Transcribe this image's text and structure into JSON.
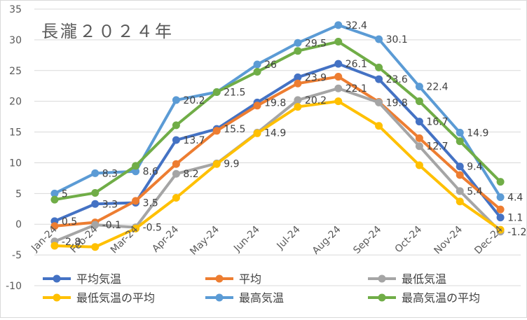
{
  "chart_data": {
    "type": "line",
    "title": "長瀧２０２４年",
    "categories": [
      "Jan-24",
      "Feb-24",
      "Mar-24",
      "Apr-24",
      "May-24",
      "Jun-24",
      "Jul-24",
      "Aug-24",
      "Sep-24",
      "Oct-24",
      "Nov-24",
      "Dec-24"
    ],
    "ylim": [
      -10,
      35
    ],
    "yticks": [
      -10,
      -5,
      0,
      5,
      10,
      15,
      20,
      25,
      30,
      35
    ],
    "grid": true,
    "legend_position": "bottom",
    "series": [
      {
        "name": "平均気温",
        "color": "#4472c4",
        "values": [
          0.5,
          3.3,
          3.5,
          13.7,
          15.5,
          19.8,
          23.9,
          26.1,
          23.6,
          16.7,
          9.4,
          1.1
        ],
        "labels": [
          "0.5",
          "3.3",
          "3.5",
          "13.7",
          "15.5",
          "19.8",
          "23.9",
          "26.1",
          "23.6",
          "16.7",
          "9.4",
          "1.1"
        ]
      },
      {
        "name": "平均",
        "color": "#ed7d31",
        "values": [
          -0.3,
          0.3,
          3.8,
          9.8,
          15.2,
          19.3,
          22.9,
          24.0,
          19.9,
          14.0,
          8.0,
          2.4
        ],
        "labels": []
      },
      {
        "name": "最低気温",
        "color": "#a5a5a5",
        "values": [
          -2.8,
          -0.1,
          -0.5,
          8.2,
          9.9,
          14.9,
          20.2,
          22.1,
          19.8,
          12.7,
          5.4,
          -1.2
        ],
        "labels": [
          "-2.8",
          "-0.1",
          "-0.5",
          "8.2",
          "9.9",
          "14.9",
          "20.2",
          "22.1",
          "19.8",
          "12.7",
          "5.4",
          "-1.2"
        ]
      },
      {
        "name": "最低気温の平均",
        "color": "#ffc000",
        "values": [
          -3.5,
          -3.7,
          -0.7,
          4.3,
          9.8,
          14.8,
          19.1,
          20.0,
          16.0,
          9.6,
          3.7,
          -0.9
        ],
        "labels": []
      },
      {
        "name": "最高気温",
        "color": "#5b9bd5",
        "values": [
          5.0,
          8.3,
          8.6,
          20.2,
          21.5,
          26.0,
          29.5,
          32.4,
          30.1,
          22.4,
          14.9,
          4.4
        ],
        "labels": [
          "5",
          "8.3",
          "8.6",
          "20.2",
          "21.5",
          "26",
          "29.5",
          "32.4",
          "30.1",
          "22.4",
          "14.9",
          "4.4"
        ]
      },
      {
        "name": "最高気温の平均",
        "color": "#70ad47",
        "values": [
          4.0,
          5.1,
          9.5,
          16.1,
          21.5,
          24.8,
          28.2,
          29.7,
          25.5,
          20.0,
          13.5,
          6.9
        ],
        "labels": []
      }
    ]
  }
}
